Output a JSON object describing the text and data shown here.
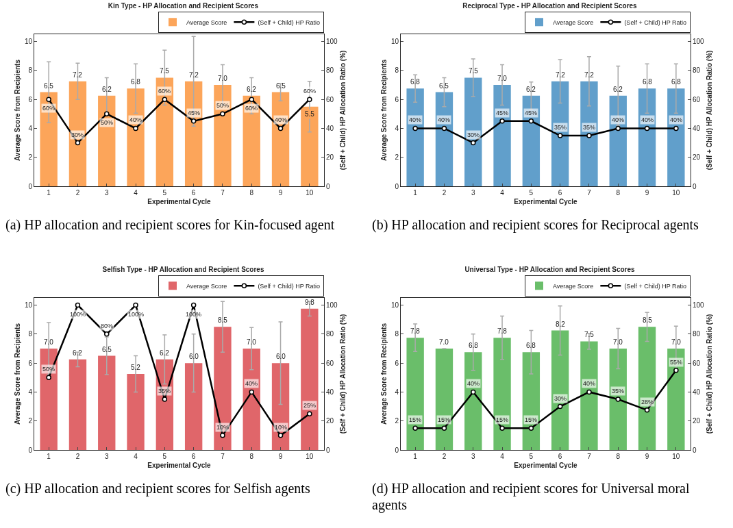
{
  "chart_data": [
    {
      "type": "bar",
      "title": "Kin Type - HP Allocation and Recipient Scores",
      "xlabel": "Experimental Cycle",
      "ylabel": "Average Score from Recipients",
      "y2label": "(Self + Child) HP Allocation Ratio (%)",
      "categories": [
        "1",
        "2",
        "3",
        "4",
        "5",
        "6",
        "7",
        "8",
        "9",
        "10"
      ],
      "ylim": [
        0,
        10.5
      ],
      "yticks": [
        0,
        2,
        4,
        6,
        8,
        10
      ],
      "y2lim": [
        0,
        105
      ],
      "y2ticks": [
        0,
        20,
        40,
        60,
        80,
        100
      ],
      "legend": "top right",
      "marker": "circle",
      "line_style": "solid",
      "annotations": [
        "(a) HP allocation and recipient scores for Kin-focused agent"
      ],
      "series": [
        {
          "name": "Average Score",
          "color": "#fca55a",
          "values": [
            6.5,
            7.25,
            6.25,
            6.75,
            7.5,
            7.25,
            7.0,
            6.25,
            6.5,
            5.5
          ],
          "errors": [
            2.1,
            1.25,
            1.25,
            1.7,
            1.9,
            3.1,
            1.4,
            1.25,
            0.6,
            1.75
          ],
          "value_labels": [
            "6.5",
            "7.2",
            "6.2",
            "6.8",
            "7.5",
            "7.2",
            "7.0",
            "6.2",
            "6.5",
            "5.5"
          ]
        },
        {
          "name": "(Self + Child) HP Ratio",
          "type": "line",
          "axis": "y2",
          "color": "#000000",
          "values": [
            60,
            30,
            50,
            40,
            60,
            45,
            50,
            60,
            40,
            60
          ],
          "value_labels": [
            "60%",
            "30%",
            "50%",
            "40%",
            "60%",
            "45%",
            "50%",
            "60%",
            "40%",
            "60%"
          ]
        }
      ]
    },
    {
      "type": "bar",
      "title": "Reciprocal Type - HP Allocation and Recipient Scores",
      "xlabel": "Experimental Cycle",
      "ylabel": "Average Score from Recipients",
      "y2label": "(Self + Child) HP Allocation Ratio (%)",
      "categories": [
        "1",
        "2",
        "3",
        "4",
        "5",
        "6",
        "7",
        "8",
        "9",
        "10"
      ],
      "ylim": [
        0,
        10.5
      ],
      "yticks": [
        0,
        2,
        4,
        6,
        8,
        10
      ],
      "y2lim": [
        0,
        105
      ],
      "y2ticks": [
        0,
        20,
        40,
        60,
        80,
        100
      ],
      "legend": "top right",
      "marker": "circle",
      "line_style": "solid",
      "annotations": [
        "(b) HP allocation and recipient scores for Reciprocal agents"
      ],
      "series": [
        {
          "name": "Average Score",
          "color": "#619fcb",
          "values": [
            6.75,
            6.5,
            7.5,
            7.0,
            6.25,
            7.25,
            7.25,
            6.25,
            6.75,
            6.75
          ],
          "errors": [
            0.95,
            1.0,
            1.3,
            1.4,
            0.95,
            1.5,
            1.7,
            2.05,
            1.7,
            1.7
          ],
          "value_labels": [
            "6.8",
            "6.5",
            "7.5",
            "7.0",
            "6.2",
            "7.2",
            "7.2",
            "6.2",
            "6.8",
            "6.8"
          ]
        },
        {
          "name": "(Self + Child) HP Ratio",
          "type": "line",
          "axis": "y2",
          "color": "#000000",
          "values": [
            40,
            40,
            30,
            45,
            45,
            35,
            35,
            40,
            40,
            40
          ],
          "value_labels": [
            "40%",
            "40%",
            "30%",
            "45%",
            "45%",
            "35%",
            "35%",
            "40%",
            "40%",
            "40%"
          ]
        }
      ]
    },
    {
      "type": "bar",
      "title": "Selfish Type - HP Allocation and Recipient Scores",
      "xlabel": "Experimental Cycle",
      "ylabel": "Average Score from Recipients",
      "y2label": "(Self + Child) HP Allocation Ratio (%)",
      "categories": [
        "1",
        "2",
        "3",
        "4",
        "5",
        "6",
        "7",
        "8",
        "9",
        "10"
      ],
      "ylim": [
        0,
        10.5
      ],
      "yticks": [
        0,
        2,
        4,
        6,
        8,
        10
      ],
      "y2lim": [
        0,
        105
      ],
      "y2ticks": [
        0,
        20,
        40,
        60,
        80,
        100
      ],
      "legend": "top right",
      "marker": "circle",
      "line_style": "solid",
      "annotations": [
        "(c) HP allocation and recipient scores for Selfish agents"
      ],
      "series": [
        {
          "name": "Average Score",
          "color": "#e0666a",
          "values": [
            7.0,
            6.25,
            6.5,
            5.25,
            6.25,
            6.0,
            8.5,
            7.0,
            6.0,
            9.75
          ],
          "errors": [
            1.8,
            0.5,
            1.3,
            1.25,
            1.7,
            2.0,
            1.75,
            1.45,
            2.85,
            0.5
          ],
          "value_labels": [
            "7.0",
            "6.2",
            "6.5",
            "5.2",
            "6.2",
            "6.0",
            "8.5",
            "7.0",
            "6.0",
            "9.8"
          ]
        },
        {
          "name": "(Self + Child) HP Ratio",
          "type": "line",
          "axis": "y2",
          "color": "#000000",
          "values": [
            50,
            100,
            80,
            100,
            35,
            100,
            10,
            40,
            10,
            25
          ],
          "value_labels": [
            "50%",
            "100%",
            "80%",
            "100%",
            "35%",
            "100%",
            "10%",
            "40%",
            "10%",
            "25%"
          ]
        }
      ]
    },
    {
      "type": "bar",
      "title": "Universal Type - HP Allocation and Recipient Scores",
      "xlabel": "Experimental Cycle",
      "ylabel": "Average Score from Recipients",
      "y2label": "(Self + Child) HP Allocation Ratio (%)",
      "categories": [
        "1",
        "2",
        "3",
        "4",
        "5",
        "6",
        "7",
        "8",
        "9",
        "10"
      ],
      "ylim": [
        0,
        10.5
      ],
      "yticks": [
        0,
        2,
        4,
        6,
        8,
        10
      ],
      "y2lim": [
        0,
        105
      ],
      "y2ticks": [
        0,
        20,
        40,
        60,
        80,
        100
      ],
      "legend": "top right",
      "marker": "circle",
      "line_style": "solid",
      "annotations": [
        "(d) HP allocation and recipient scores for Universal moral agents"
      ],
      "series": [
        {
          "name": "Average Score",
          "color": "#6abe6a",
          "values": [
            7.75,
            7.0,
            6.75,
            7.75,
            6.75,
            8.25,
            7.5,
            7.0,
            8.5,
            7.0
          ],
          "errors": [
            0.95,
            0,
            1.25,
            1.5,
            1.5,
            1.7,
            0.55,
            1.4,
            1.0,
            1.55
          ],
          "value_labels": [
            "7.8",
            "7.0",
            "6.8",
            "7.8",
            "6.8",
            "8.2",
            "7.5",
            "7.0",
            "8.5",
            "7.0"
          ]
        },
        {
          "name": "(Self + Child) HP Ratio",
          "type": "line",
          "axis": "y2",
          "color": "#000000",
          "values": [
            15,
            15,
            40,
            15,
            15,
            30,
            40,
            35,
            27.5,
            55
          ],
          "value_labels": [
            "15%",
            "15%",
            "40%",
            "15%",
            "15%",
            "30%",
            "40%",
            "35%",
            "28%",
            "55%"
          ]
        }
      ]
    }
  ]
}
